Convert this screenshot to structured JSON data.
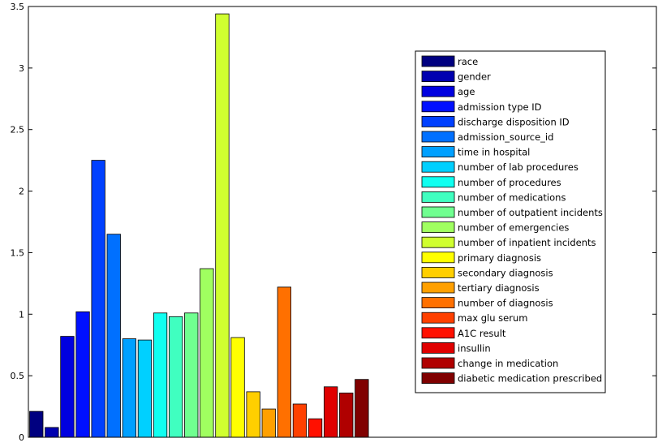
{
  "chart_data": {
    "type": "bar",
    "title": "",
    "xlabel": "",
    "ylabel": "",
    "ylim": [
      0,
      3.5
    ],
    "yticks": [
      0,
      0.5,
      1,
      1.5,
      2,
      2.5,
      3,
      3.5
    ],
    "ytick_labels": [
      "0",
      "0.5",
      "1",
      "1.5",
      "2",
      "2.5",
      "3",
      "3.5"
    ],
    "x_ticks_shown": false,
    "grid": false,
    "legend_position": "top-right",
    "bars": [
      {
        "name": "race",
        "value": 0.21,
        "color": "#000080"
      },
      {
        "name": "gender",
        "value": 0.08,
        "color": "#0000B0"
      },
      {
        "name": "age",
        "value": 0.82,
        "color": "#0000E0"
      },
      {
        "name": "admission type ID",
        "value": 1.02,
        "color": "#0010FF"
      },
      {
        "name": "discharge disposition ID",
        "value": 2.25,
        "color": "#0040FF"
      },
      {
        "name": "admission_source_id",
        "value": 1.65,
        "color": "#0070FF"
      },
      {
        "name": "time in hospital",
        "value": 0.8,
        "color": "#00A0FF"
      },
      {
        "name": "number of lab procedures",
        "value": 0.79,
        "color": "#00D0FF"
      },
      {
        "name": "number of procedures",
        "value": 1.01,
        "color": "#10FFF0"
      },
      {
        "name": "number of medications",
        "value": 0.98,
        "color": "#40FFC0"
      },
      {
        "name": "number of outpatient incidents",
        "value": 1.01,
        "color": "#70FF90"
      },
      {
        "name": "number of emergencies",
        "value": 1.37,
        "color": "#A0FF60"
      },
      {
        "name": "number of inpatient incidents",
        "value": 3.44,
        "color": "#D0FF30"
      },
      {
        "name": "primary diagnosis",
        "value": 0.81,
        "color": "#FFFF00"
      },
      {
        "name": "secondary diagnosis",
        "value": 0.37,
        "color": "#FFCF00"
      },
      {
        "name": "tertiary diagnosis",
        "value": 0.23,
        "color": "#FFA000"
      },
      {
        "name": "number of diagnosis",
        "value": 1.22,
        "color": "#FF7000"
      },
      {
        "name": "max glu serum",
        "value": 0.27,
        "color": "#FF4000"
      },
      {
        "name": "A1C result",
        "value": 0.15,
        "color": "#FF1000"
      },
      {
        "name": "insullin",
        "value": 0.41,
        "color": "#E00000"
      },
      {
        "name": "change in medication",
        "value": 0.36,
        "color": "#B00000"
      },
      {
        "name": "diabetic medication prescribed",
        "value": 0.47,
        "color": "#800000"
      }
    ]
  }
}
